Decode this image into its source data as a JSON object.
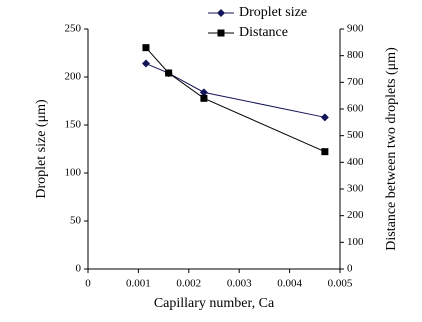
{
  "chart_data": {
    "type": "line",
    "x_label": "Capillary number, Ca",
    "y_label": "Droplet size (μm)",
    "y2_label": "Distance between two droplets (μm)",
    "xlim": [
      0,
      0.005
    ],
    "xticks": [
      0,
      0.001,
      0.002,
      0.003,
      0.004,
      0.005
    ],
    "ylim": [
      0,
      250
    ],
    "yticks": [
      0,
      50,
      100,
      150,
      200,
      250
    ],
    "y2lim": [
      0,
      900
    ],
    "y2ticks": [
      0,
      100,
      200,
      300,
      400,
      500,
      600,
      700,
      800,
      900
    ],
    "grid": false,
    "series": [
      {
        "name": "Droplet size",
        "color": "#14145a",
        "marker": "diamond",
        "axis": "y",
        "x": [
          0.00115,
          0.0016,
          0.0023,
          0.0047
        ],
        "values": [
          214,
          204,
          184,
          158
        ]
      },
      {
        "name": "Distance",
        "color": "#000000",
        "marker": "square",
        "axis": "y2",
        "x": [
          0.00115,
          0.0016,
          0.0023,
          0.0047
        ],
        "values": [
          830,
          735,
          640,
          440
        ]
      }
    ]
  }
}
